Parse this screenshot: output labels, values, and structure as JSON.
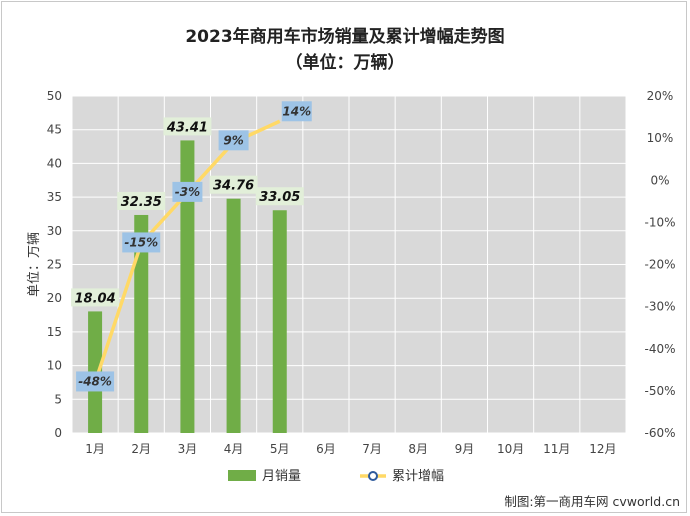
{
  "chart_data": {
    "type": "bar+line",
    "title": "2023年商用车市场销量及累计增幅走势图",
    "subtitle": "（单位：万辆）",
    "ylabel": "单位：万辆",
    "categories": [
      "1月",
      "2月",
      "3月",
      "4月",
      "5月",
      "6月",
      "7月",
      "8月",
      "9月",
      "10月",
      "11月",
      "12月"
    ],
    "series": [
      {
        "name": "月销量",
        "type": "bar",
        "axis": "left",
        "color": "#70ad47",
        "values": [
          18.04,
          32.35,
          43.41,
          34.76,
          33.05,
          null,
          null,
          null,
          null,
          null,
          null,
          null
        ],
        "labels": [
          "18.04",
          "32.35",
          "43.41",
          "34.76",
          "33.05"
        ]
      },
      {
        "name": "累计增幅",
        "type": "line",
        "axis": "right",
        "color": "#ffd966",
        "values": [
          -48,
          -15,
          -3,
          9,
          14,
          null,
          null,
          null,
          null,
          null,
          null,
          null
        ],
        "labels": [
          "-48%",
          "-15%",
          "-3%",
          "9%",
          "14%"
        ]
      }
    ],
    "left_axis": {
      "min": 0,
      "max": 50,
      "step": 5,
      "ticks": [
        "0",
        "5",
        "10",
        "15",
        "20",
        "25",
        "30",
        "35",
        "40",
        "45",
        "50"
      ]
    },
    "right_axis": {
      "min": -60,
      "max": 20,
      "step": 10,
      "ticks": [
        "-60%",
        "-50%",
        "-40%",
        "-30%",
        "-20%",
        "-10%",
        "0%",
        "10%",
        "20%"
      ]
    },
    "grid": true,
    "legend_position": "bottom",
    "marked_point_index": 2
  },
  "credit": "制图:第一商用车网 cvworld.cn"
}
